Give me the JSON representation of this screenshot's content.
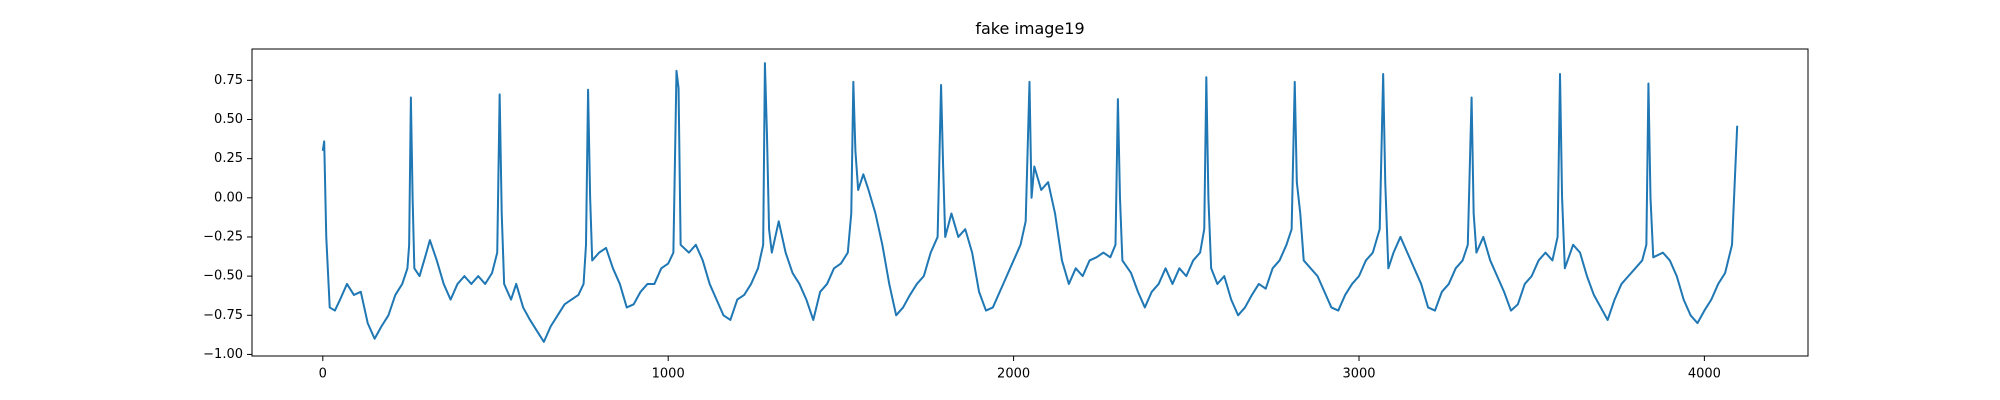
{
  "chart_data": {
    "type": "line",
    "title": "fake image19",
    "x": [
      0,
      4,
      10,
      20,
      35,
      50,
      70,
      90,
      110,
      130,
      150,
      170,
      190,
      210,
      230,
      245,
      250,
      255,
      260,
      265,
      280,
      300,
      310,
      330,
      350,
      370,
      390,
      410,
      430,
      450,
      470,
      490,
      505,
      512,
      518,
      525,
      545,
      560,
      580,
      600,
      620,
      640,
      660,
      680,
      700,
      720,
      740,
      755,
      762,
      768,
      774,
      780,
      800,
      820,
      840,
      860,
      880,
      900,
      920,
      940,
      960,
      980,
      1000,
      1015,
      1024,
      1030,
      1036,
      1060,
      1080,
      1100,
      1120,
      1140,
      1160,
      1180,
      1200,
      1220,
      1240,
      1260,
      1275,
      1280,
      1286,
      1292,
      1300,
      1320,
      1340,
      1360,
      1380,
      1400,
      1420,
      1440,
      1460,
      1480,
      1500,
      1520,
      1530,
      1536,
      1542,
      1550,
      1565,
      1580,
      1600,
      1620,
      1640,
      1660,
      1680,
      1700,
      1720,
      1740,
      1760,
      1780,
      1790,
      1796,
      1802,
      1820,
      1840,
      1860,
      1880,
      1900,
      1920,
      1940,
      1960,
      1980,
      2000,
      2020,
      2035,
      2046,
      2052,
      2060,
      2080,
      2100,
      2120,
      2140,
      2160,
      2180,
      2200,
      2220,
      2240,
      2260,
      2280,
      2295,
      2302,
      2308,
      2315,
      2340,
      2360,
      2380,
      2400,
      2420,
      2440,
      2460,
      2480,
      2500,
      2520,
      2540,
      2552,
      2558,
      2564,
      2572,
      2590,
      2610,
      2630,
      2650,
      2670,
      2690,
      2710,
      2730,
      2750,
      2770,
      2790,
      2805,
      2814,
      2820,
      2830,
      2840,
      2860,
      2880,
      2900,
      2920,
      2940,
      2960,
      2980,
      3000,
      3020,
      3040,
      3060,
      3070,
      3076,
      3085,
      3100,
      3120,
      3140,
      3160,
      3180,
      3200,
      3220,
      3240,
      3260,
      3280,
      3300,
      3315,
      3326,
      3332,
      3340,
      3360,
      3380,
      3400,
      3420,
      3440,
      3460,
      3480,
      3500,
      3520,
      3540,
      3560,
      3575,
      3582,
      3588,
      3596,
      3620,
      3640,
      3660,
      3680,
      3700,
      3720,
      3740,
      3760,
      3780,
      3800,
      3820,
      3832,
      3838,
      3844,
      3852,
      3880,
      3900,
      3920,
      3940,
      3960,
      3980,
      4000,
      4020,
      4040,
      4060,
      4080,
      4095
    ],
    "series": [
      {
        "color": "#1f77b4",
        "values": [
          0.3,
          0.36,
          -0.25,
          -0.7,
          -0.72,
          -0.65,
          -0.55,
          -0.62,
          -0.6,
          -0.8,
          -0.9,
          -0.82,
          -0.75,
          -0.62,
          -0.55,
          -0.45,
          -0.3,
          0.64,
          0.0,
          -0.45,
          -0.5,
          -0.35,
          -0.27,
          -0.4,
          -0.55,
          -0.65,
          -0.55,
          -0.5,
          -0.55,
          -0.5,
          -0.55,
          -0.48,
          -0.35,
          0.66,
          -0.1,
          -0.55,
          -0.65,
          -0.55,
          -0.7,
          -0.78,
          -0.85,
          -0.92,
          -0.82,
          -0.75,
          -0.68,
          -0.65,
          -0.62,
          -0.55,
          -0.3,
          0.69,
          0.0,
          -0.4,
          -0.35,
          -0.32,
          -0.45,
          -0.55,
          -0.7,
          -0.68,
          -0.6,
          -0.55,
          -0.55,
          -0.45,
          -0.42,
          -0.35,
          0.81,
          0.7,
          -0.3,
          -0.35,
          -0.3,
          -0.4,
          -0.55,
          -0.65,
          -0.75,
          -0.78,
          -0.65,
          -0.62,
          -0.55,
          -0.45,
          -0.3,
          0.86,
          0.4,
          -0.2,
          -0.35,
          -0.15,
          -0.35,
          -0.48,
          -0.55,
          -0.65,
          -0.78,
          -0.6,
          -0.55,
          -0.45,
          -0.42,
          -0.35,
          -0.1,
          0.74,
          0.3,
          0.05,
          0.15,
          0.05,
          -0.1,
          -0.3,
          -0.55,
          -0.75,
          -0.7,
          -0.62,
          -0.55,
          -0.5,
          -0.35,
          -0.25,
          0.72,
          0.2,
          -0.25,
          -0.1,
          -0.25,
          -0.2,
          -0.35,
          -0.6,
          -0.72,
          -0.7,
          -0.6,
          -0.5,
          -0.4,
          -0.3,
          -0.15,
          0.74,
          0.0,
          0.2,
          0.05,
          0.1,
          -0.1,
          -0.4,
          -0.55,
          -0.45,
          -0.5,
          -0.4,
          -0.38,
          -0.35,
          -0.38,
          -0.3,
          0.63,
          0.0,
          -0.4,
          -0.48,
          -0.6,
          -0.7,
          -0.6,
          -0.55,
          -0.45,
          -0.55,
          -0.45,
          -0.5,
          -0.4,
          -0.35,
          -0.2,
          0.77,
          0.0,
          -0.45,
          -0.55,
          -0.5,
          -0.65,
          -0.75,
          -0.7,
          -0.62,
          -0.55,
          -0.58,
          -0.45,
          -0.4,
          -0.3,
          -0.2,
          0.74,
          0.1,
          -0.1,
          -0.4,
          -0.45,
          -0.5,
          -0.6,
          -0.7,
          -0.72,
          -0.62,
          -0.55,
          -0.5,
          -0.4,
          -0.35,
          -0.2,
          0.79,
          0.1,
          -0.45,
          -0.35,
          -0.25,
          -0.35,
          -0.45,
          -0.55,
          -0.7,
          -0.72,
          -0.6,
          -0.55,
          -0.45,
          -0.4,
          -0.3,
          0.64,
          -0.1,
          -0.35,
          -0.25,
          -0.4,
          -0.5,
          -0.6,
          -0.72,
          -0.68,
          -0.55,
          -0.5,
          -0.4,
          -0.35,
          -0.4,
          -0.25,
          0.79,
          0.0,
          -0.45,
          -0.3,
          -0.35,
          -0.5,
          -0.62,
          -0.7,
          -0.78,
          -0.65,
          -0.55,
          -0.5,
          -0.45,
          -0.4,
          -0.3,
          0.73,
          0.0,
          -0.38,
          -0.35,
          -0.4,
          -0.5,
          -0.65,
          -0.75,
          -0.8,
          -0.72,
          -0.65,
          -0.55,
          -0.48,
          -0.3,
          0.46
        ]
      }
    ],
    "xlim": [
      -205,
      4300
    ],
    "ylim": [
      -1.01,
      0.95
    ],
    "xticks": [
      0,
      1000,
      2000,
      3000,
      4000
    ],
    "yticks": [
      {
        "value": -1,
        "label": "−1.00"
      },
      {
        "value": -0.75,
        "label": "−0.75"
      },
      {
        "value": -0.5,
        "label": "−0.50"
      },
      {
        "value": -0.25,
        "label": "−0.25"
      },
      {
        "value": 0,
        "label": "0.00"
      },
      0.25,
      {
        "value": 0.5,
        "label": "0.50"
      },
      0.75
    ],
    "grid": false
  }
}
